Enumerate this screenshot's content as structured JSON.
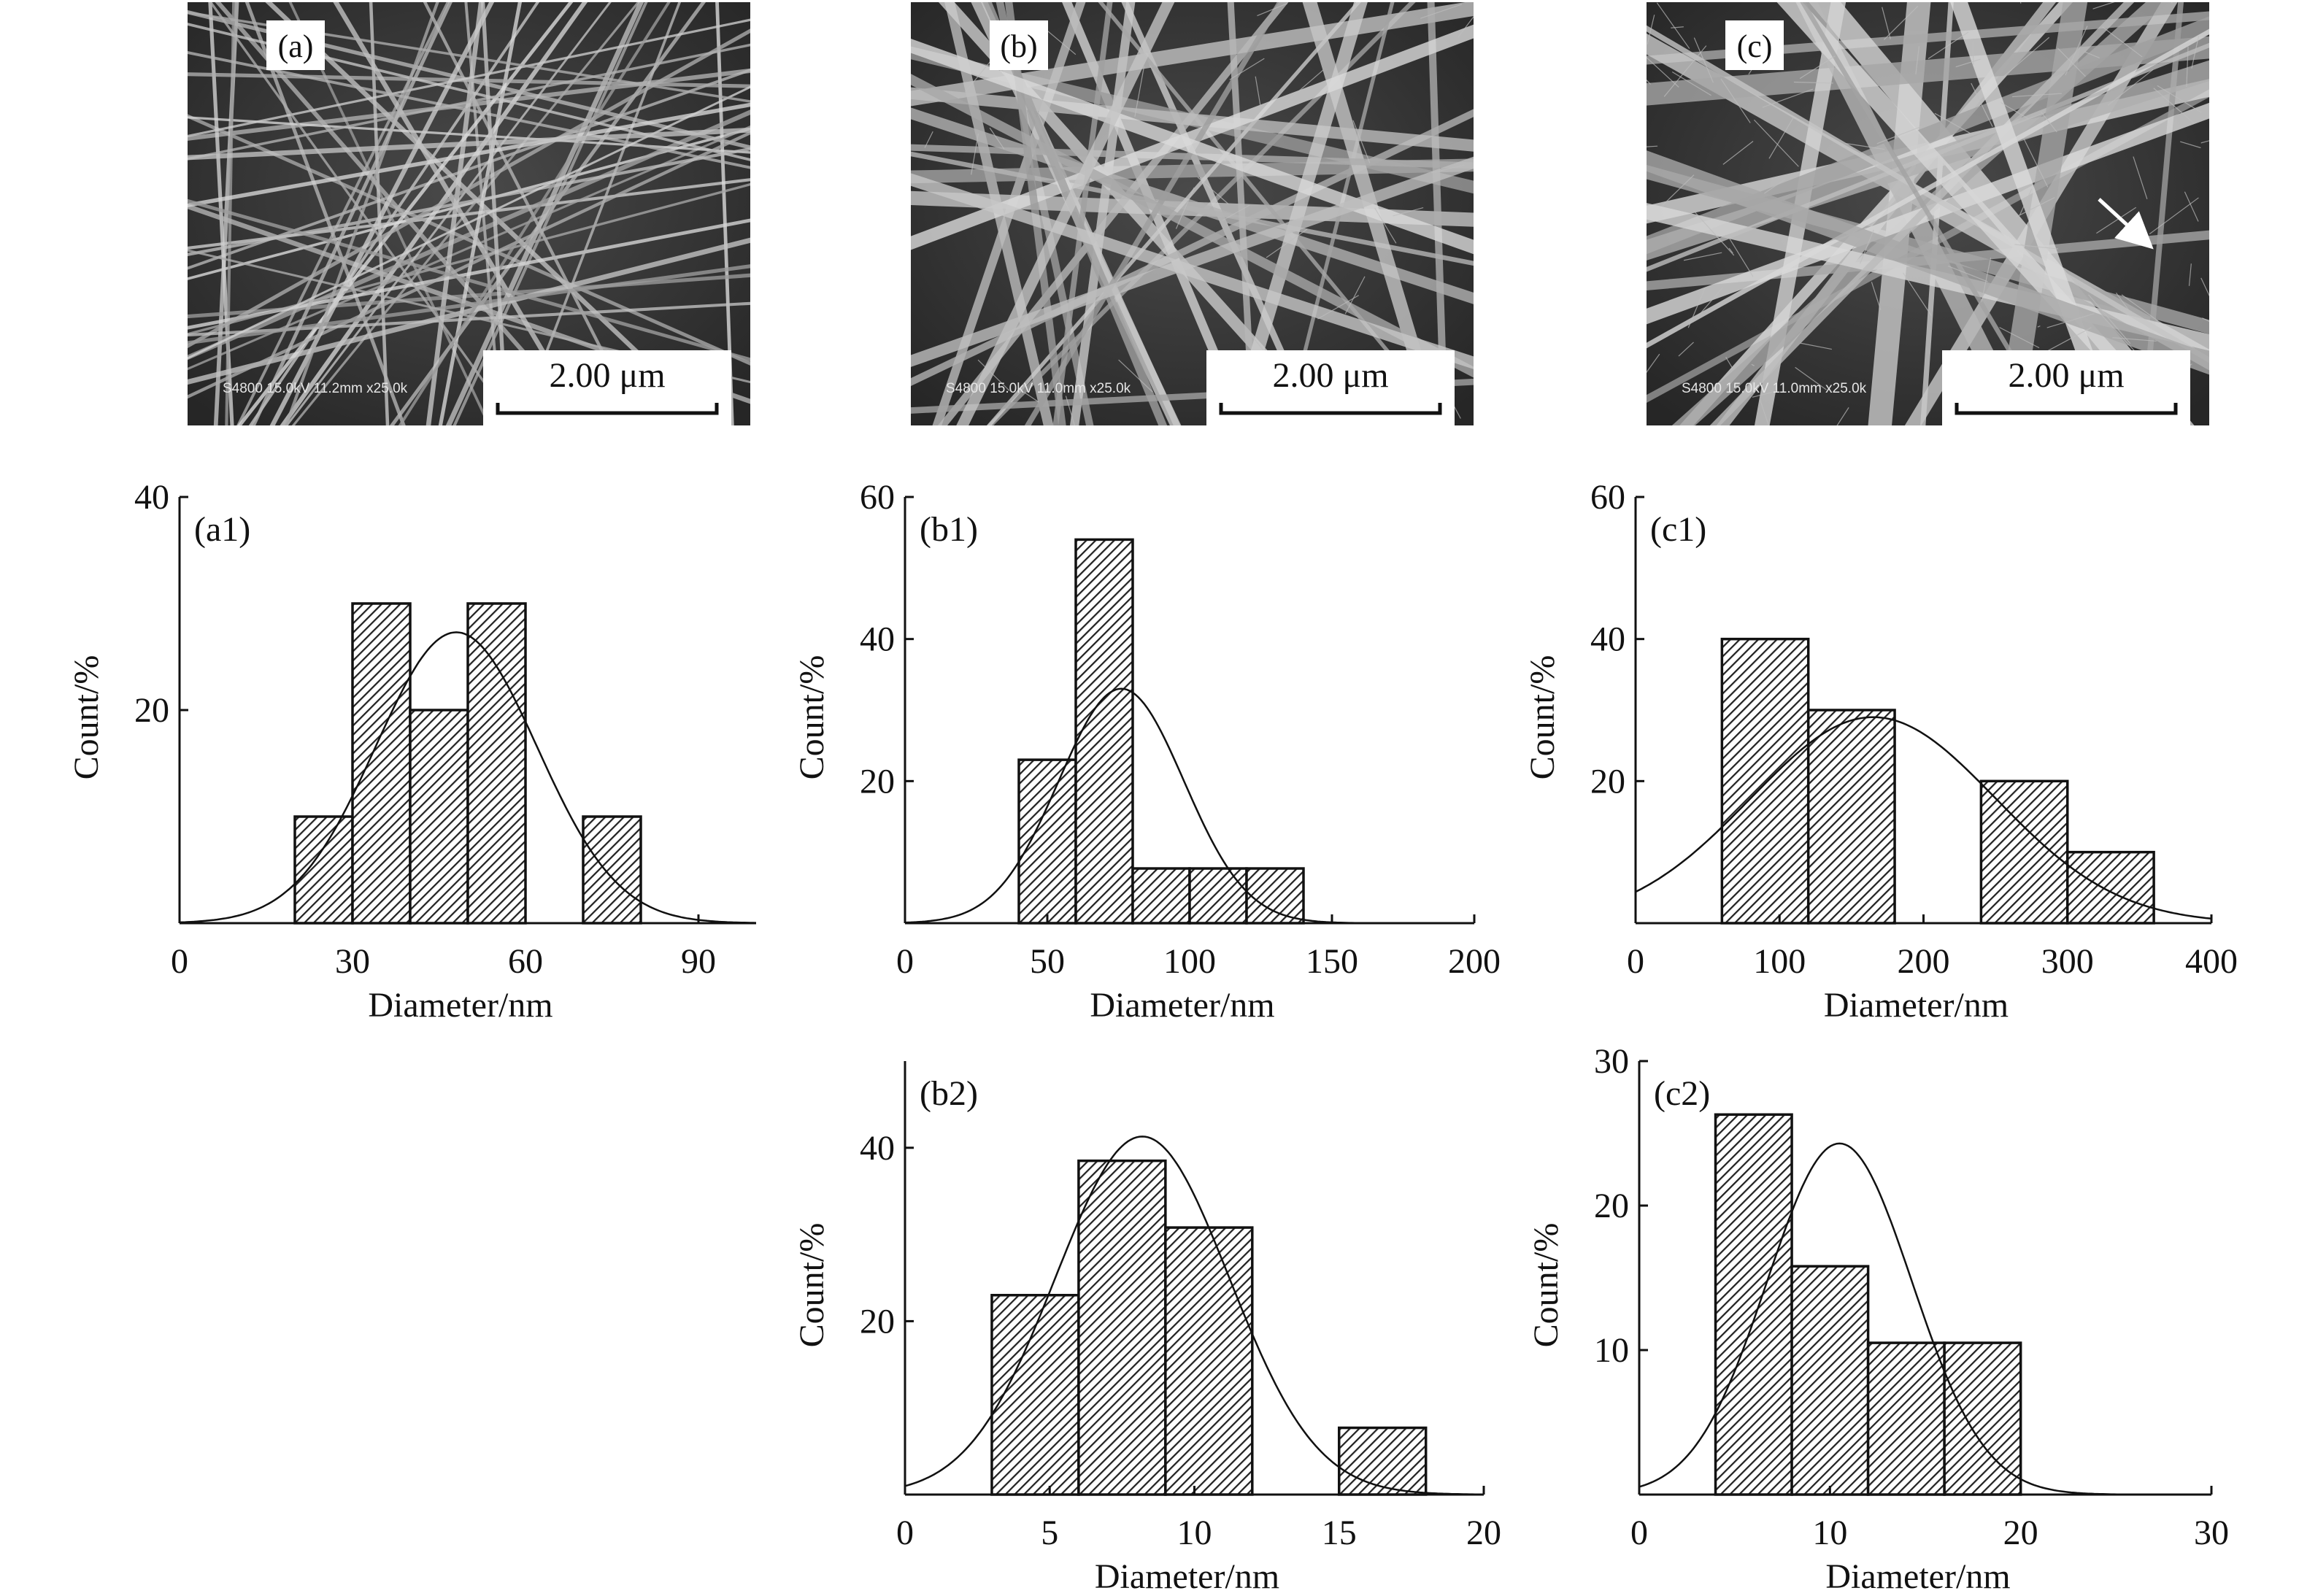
{
  "sem_images": [
    {
      "label": "(a)",
      "scale_text": "2.00 μm",
      "info_text": "S4800 15.0kV 11.2mm x25.0k",
      "has_arrow": false
    },
    {
      "label": "(b)",
      "scale_text": "2.00 μm",
      "info_text": "S4800 15.0kV 11.0mm x25.0k",
      "has_arrow": false
    },
    {
      "label": "(c)",
      "scale_text": "2.00 μm",
      "info_text": "S4800 15.0kV 11.0mm x25.0k",
      "has_arrow": true
    }
  ],
  "chart_data": [
    {
      "id": "a1",
      "type": "bar",
      "label": "(a1)",
      "xlabel": "Diameter/nm",
      "ylabel": "Count/%",
      "xlim": [
        0,
        100
      ],
      "ylim": [
        0,
        40
      ],
      "xticks": [
        0,
        30,
        60,
        90
      ],
      "yticks": [
        20,
        40
      ],
      "y_origin_label": false,
      "bins": [
        {
          "x0": 20,
          "x1": 30,
          "value": 10
        },
        {
          "x0": 30,
          "x1": 40,
          "value": 30
        },
        {
          "x0": 40,
          "x1": 50,
          "value": 20
        },
        {
          "x0": 50,
          "x1": 60,
          "value": 30
        },
        {
          "x0": 70,
          "x1": 80,
          "value": 10
        }
      ],
      "fit": {
        "mean": 48,
        "sd": 14,
        "peak": 27.3
      }
    },
    {
      "id": "b1",
      "type": "bar",
      "label": "(b1)",
      "xlabel": "Diameter/nm",
      "ylabel": "Count/%",
      "xlim": [
        0,
        200
      ],
      "ylim": [
        0,
        60
      ],
      "xticks": [
        0,
        50,
        100,
        150,
        200
      ],
      "yticks": [
        20,
        40,
        60
      ],
      "y_origin_label": false,
      "bins": [
        {
          "x0": 40,
          "x1": 60,
          "value": 23
        },
        {
          "x0": 60,
          "x1": 80,
          "value": 54
        },
        {
          "x0": 80,
          "x1": 100,
          "value": 7.7
        },
        {
          "x0": 100,
          "x1": 120,
          "value": 7.7
        },
        {
          "x0": 120,
          "x1": 140,
          "value": 7.7
        }
      ],
      "fit": {
        "mean": 76,
        "sd": 22,
        "peak": 33
      }
    },
    {
      "id": "c1",
      "type": "bar",
      "label": "(c1)",
      "xlabel": "Diameter/nm",
      "ylabel": "Count/%",
      "xlim": [
        0,
        400
      ],
      "ylim": [
        0,
        60
      ],
      "xticks": [
        0,
        100,
        200,
        300,
        400
      ],
      "yticks": [
        20,
        40,
        60
      ],
      "y_origin_label": false,
      "bins": [
        {
          "x0": 60,
          "x1": 120,
          "value": 40
        },
        {
          "x0": 120,
          "x1": 180,
          "value": 30
        },
        {
          "x0": 240,
          "x1": 300,
          "value": 20
        },
        {
          "x0": 300,
          "x1": 360,
          "value": 10
        }
      ],
      "fit": {
        "mean": 165,
        "sd": 85,
        "peak": 29
      }
    },
    {
      "id": "b2",
      "type": "bar",
      "label": "(b2)",
      "xlabel": "Diameter/nm",
      "ylabel": "Count/%",
      "xlim": [
        0,
        20
      ],
      "ylim": [
        0,
        50
      ],
      "xticks": [
        0,
        5,
        10,
        15,
        20
      ],
      "yticks": [
        20,
        40
      ],
      "y_origin_label": false,
      "bins": [
        {
          "x0": 3,
          "x1": 6,
          "value": 23
        },
        {
          "x0": 6,
          "x1": 9,
          "value": 38.5
        },
        {
          "x0": 9,
          "x1": 12,
          "value": 30.8
        },
        {
          "x0": 15,
          "x1": 18,
          "value": 7.7
        }
      ],
      "fit": {
        "mean": 8.2,
        "sd": 3.0,
        "peak": 41.3
      }
    },
    {
      "id": "c2",
      "type": "bar",
      "label": "(c2)",
      "xlabel": "Diameter/nm",
      "ylabel": "Count/%",
      "xlim": [
        0,
        30
      ],
      "ylim": [
        0,
        30
      ],
      "xticks": [
        0,
        10,
        20,
        30
      ],
      "yticks": [
        10,
        20,
        30
      ],
      "y_origin_label": false,
      "bins": [
        {
          "x0": 4,
          "x1": 8,
          "value": 26.3
        },
        {
          "x0": 8,
          "x1": 12,
          "value": 15.8
        },
        {
          "x0": 12,
          "x1": 16,
          "value": 10.5
        },
        {
          "x0": 16,
          "x1": 20,
          "value": 10.5
        }
      ],
      "fit": {
        "mean": 10.5,
        "sd": 3.8,
        "peak": 24.3
      }
    }
  ]
}
